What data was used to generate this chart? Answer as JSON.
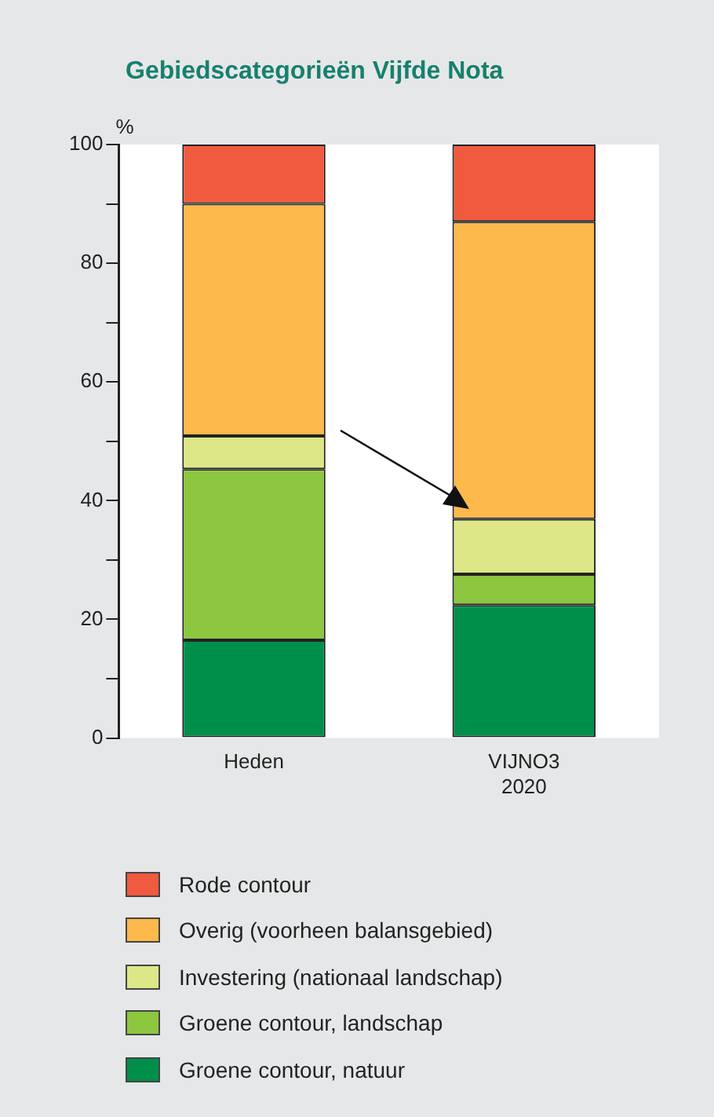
{
  "chart_data": {
    "type": "bar",
    "title": "Gebiedscategorieën Vijfde Nota",
    "ylabel": "%",
    "categories": [
      "Heden",
      "VIJNO3 2020"
    ],
    "stacked": true,
    "legend": "bottom",
    "grid": false,
    "ylim": [
      0,
      100
    ],
    "yticks": [
      0,
      {
        "value": 10,
        "label": null
      },
      20,
      {
        "value": 30,
        "label": null
      },
      40,
      {
        "value": 50,
        "label": null
      },
      60,
      {
        "value": 70,
        "label": null
      },
      80,
      {
        "value": 90,
        "label": null
      },
      100
    ],
    "series": [
      {
        "name": "Groene contour, natuur",
        "color": "#008f4a",
        "values": [
          16.5,
          22.4
        ]
      },
      {
        "name": "Groene contour, landschap",
        "color": "#8dc63f",
        "values": [
          28.8,
          5.2
        ]
      },
      {
        "name": "Investering (nationaal landschap)",
        "color": "#dde787",
        "values": [
          5.6,
          9.3
        ]
      },
      {
        "name": "Overig (voorheen balansgebied)",
        "color": "#fdb94b",
        "values": [
          39.1,
          50.1
        ]
      },
      {
        "name": "Rode contour",
        "color": "#f05a3f",
        "values": [
          10.0,
          13.0
        ]
      }
    ]
  }
}
